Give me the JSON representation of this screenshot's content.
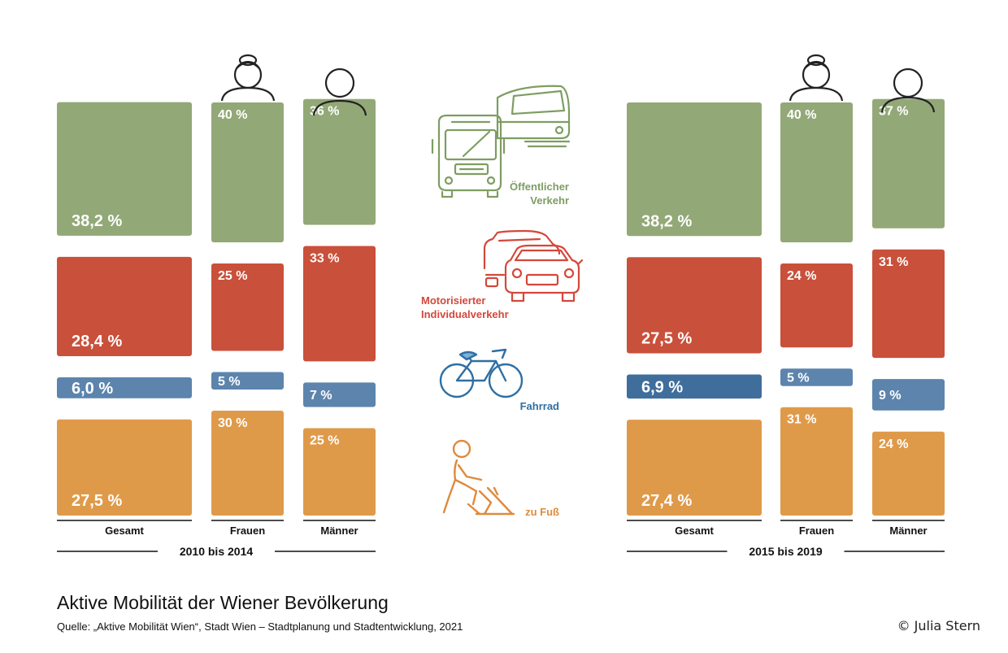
{
  "title": "Aktive Mobilität der Wiener Bevölkerung",
  "source": "Quelle: „Aktive Mobilität Wien“, Stadt Wien – Stadtplanung und Stadtentwicklung, 2021",
  "credit": "© Julia Stern",
  "colors": {
    "oeffentlich": "#93a877",
    "miv": "#c9503a",
    "fahrrad": "#5c84ad",
    "fahrrad_dark": "#3f6e9c",
    "fuss": "#df9a49",
    "icon_green": "#7e9d62",
    "icon_red": "#d4483a",
    "icon_blue": "#2f6fa3",
    "icon_orange": "#e08a3c",
    "text_dark": "#111111"
  },
  "icons": [
    "woman-icon",
    "man-icon",
    "train-bus-icon",
    "cars-icon",
    "bicycle-icon",
    "pedestrian-icon"
  ],
  "mode_labels": {
    "oeffentlich": [
      "Öffentlicher",
      "Verkehr"
    ],
    "miv": [
      "Motorisierter",
      "Individualverkehr"
    ],
    "fahrrad": [
      "Fahrrad"
    ],
    "fuss": [
      "zu Fuß"
    ]
  },
  "chart_data": [
    {
      "type": "bar",
      "period": "2010 bis 2014",
      "categories": [
        "Gesamt",
        "Frauen",
        "Männer"
      ],
      "series": [
        {
          "name": "Öffentlicher Verkehr",
          "values": [
            38.2,
            40,
            36
          ],
          "labels": [
            "38,2 %",
            "40 %",
            "36 %"
          ]
        },
        {
          "name": "Motorisierter Individualverkehr",
          "values": [
            28.4,
            25,
            33
          ],
          "labels": [
            "28,4 %",
            "25 %",
            "33 %"
          ]
        },
        {
          "name": "Fahrrad",
          "values": [
            6.0,
            5,
            7
          ],
          "labels": [
            "6,0 %",
            "5 %",
            "7 %"
          ]
        },
        {
          "name": "zu Fuß",
          "values": [
            27.5,
            30,
            25
          ],
          "labels": [
            "27,5 %",
            "30 %",
            "25 %"
          ]
        }
      ]
    },
    {
      "type": "bar",
      "period": "2015 bis 2019",
      "categories": [
        "Gesamt",
        "Frauen",
        "Männer"
      ],
      "series": [
        {
          "name": "Öffentlicher Verkehr",
          "values": [
            38.2,
            40,
            37
          ],
          "labels": [
            "38,2 %",
            "40 %",
            "37 %"
          ]
        },
        {
          "name": "Motorisierter Individualverkehr",
          "values": [
            27.5,
            24,
            31
          ],
          "labels": [
            "27,5 %",
            "24 %",
            "31 %"
          ]
        },
        {
          "name": "Fahrrad",
          "values": [
            6.9,
            5,
            9
          ],
          "labels": [
            "6,9 %",
            "5 %",
            "9 %"
          ]
        },
        {
          "name": "zu Fuß",
          "values": [
            27.4,
            31,
            24
          ],
          "labels": [
            "27,4 %",
            "31 %",
            "24 %"
          ]
        }
      ]
    }
  ]
}
